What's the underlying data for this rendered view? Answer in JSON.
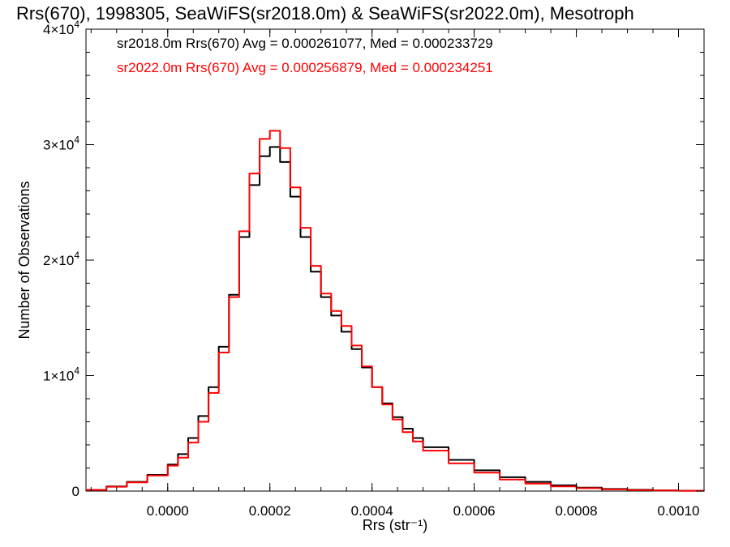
{
  "chart_data": {
    "type": "line",
    "title": "Rrs(670), 1998305, SeaWiFS(sr2018.0m) & SeaWiFS(sr2022.0m), Mesotroph",
    "xlabel": "Rrs (str⁻¹)",
    "ylabel": "Number of Observations",
    "xlim": [
      -0.00016,
      0.00105
    ],
    "ylim": [
      0,
      40000
    ],
    "x_ticks": [
      0.0,
      0.0002,
      0.0004,
      0.0006,
      0.0008,
      0.001
    ],
    "x_tick_labels": [
      "0.0000",
      "0.0002",
      "0.0004",
      "0.0006",
      "0.0008",
      "0.0010"
    ],
    "y_ticks": [
      0,
      10000,
      20000,
      30000,
      40000
    ],
    "y_tick_labels": [
      {
        "base": "0",
        "exp": ""
      },
      {
        "base": "1×10",
        "exp": "4"
      },
      {
        "base": "2×10",
        "exp": "4"
      },
      {
        "base": "3×10",
        "exp": "4"
      },
      {
        "base": "4×10",
        "exp": "4"
      }
    ],
    "grid": false,
    "legend_position": "top-left",
    "legend": [
      {
        "text": "sr2018.0m Rrs(670) Avg = 0.000261077, Med = 0.000233729",
        "color": "#000000"
      },
      {
        "text": "sr2022.0m Rrs(670) Avg = 0.000256879, Med = 0.000234251",
        "color": "#ff0000"
      }
    ],
    "x": [
      -0.00016,
      -0.00012,
      -8e-05,
      -4e-05,
      0.0,
      2e-05,
      4e-05,
      6e-05,
      8e-05,
      0.0001,
      0.00012,
      0.00014,
      0.00016,
      0.00018,
      0.0002,
      0.00022,
      0.00024,
      0.00026,
      0.00028,
      0.0003,
      0.00032,
      0.00034,
      0.00036,
      0.00038,
      0.0004,
      0.00042,
      0.00044,
      0.00046,
      0.00048,
      0.0005,
      0.00055,
      0.0006,
      0.00065,
      0.0007,
      0.00075,
      0.0008,
      0.00085,
      0.0009,
      0.00095,
      0.001,
      0.00105
    ],
    "series": [
      {
        "name": "sr2018.0m",
        "color": "#000000",
        "values": [
          100,
          400,
          800,
          1400,
          2300,
          3200,
          4600,
          6500,
          9000,
          12500,
          17000,
          22000,
          26500,
          29000,
          29800,
          28500,
          25500,
          22000,
          19000,
          16800,
          15200,
          13800,
          12300,
          10700,
          9000,
          7600,
          6400,
          5400,
          4600,
          3800,
          2700,
          1800,
          1200,
          800,
          500,
          300,
          180,
          110,
          60,
          30,
          20
        ]
      },
      {
        "name": "sr2022.0m",
        "color": "#ff0000",
        "values": [
          100,
          380,
          760,
          1350,
          2200,
          2900,
          4200,
          6000,
          8500,
          12000,
          16800,
          22500,
          27500,
          30500,
          31200,
          29700,
          26300,
          22800,
          19500,
          17100,
          15600,
          14300,
          12600,
          10800,
          9000,
          7500,
          6200,
          5100,
          4300,
          3500,
          2400,
          1600,
          1000,
          650,
          400,
          250,
          150,
          90,
          50,
          25,
          15
        ]
      }
    ]
  }
}
